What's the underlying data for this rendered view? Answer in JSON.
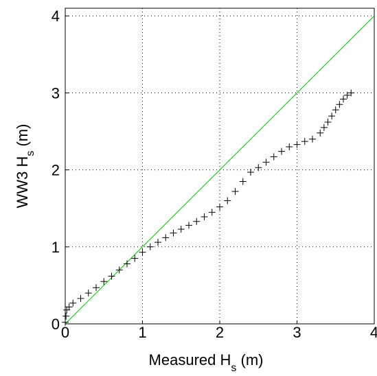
{
  "chart_data": {
    "type": "scatter",
    "xlabel": [
      "Measured H",
      "s",
      " (m)"
    ],
    "ylabel": [
      "WW3 H",
      "s",
      " (m)"
    ],
    "xlim": [
      0,
      4
    ],
    "ylim": [
      0,
      4.1
    ],
    "xticks": [
      0,
      1,
      2,
      3,
      4
    ],
    "yticks": [
      0,
      1,
      2,
      3,
      4
    ],
    "grid": true,
    "series": [
      {
        "color": "#000000",
        "x": [
          0,
          0.01,
          0.02,
          0.05,
          0.1,
          0.2,
          0.3,
          0.4,
          0.5,
          0.6,
          0.7,
          0.8,
          0.9,
          1.0,
          1.1,
          1.2,
          1.3,
          1.4,
          1.5,
          1.6,
          1.7,
          1.8,
          1.9,
          2.0,
          2.1,
          2.2,
          2.3,
          2.4,
          2.5,
          2.6,
          2.7,
          2.8,
          2.9,
          3.0,
          3.1,
          3.2,
          3.3,
          3.35,
          3.4,
          3.45,
          3.5,
          3.55,
          3.6,
          3.65,
          3.7
        ],
        "values": [
          0.02,
          0.1,
          0.18,
          0.22,
          0.27,
          0.33,
          0.4,
          0.47,
          0.55,
          0.62,
          0.7,
          0.78,
          0.85,
          0.93,
          1.0,
          1.06,
          1.12,
          1.18,
          1.23,
          1.28,
          1.33,
          1.39,
          1.45,
          1.52,
          1.6,
          1.72,
          1.85,
          1.97,
          2.03,
          2.1,
          2.17,
          2.24,
          2.3,
          2.33,
          2.37,
          2.4,
          2.48,
          2.55,
          2.62,
          2.7,
          2.78,
          2.85,
          2.92,
          2.97,
          3.0
        ]
      }
    ],
    "reference_line": {
      "color": "#00c000",
      "x": [
        0,
        4
      ],
      "values": [
        0,
        4
      ]
    }
  }
}
